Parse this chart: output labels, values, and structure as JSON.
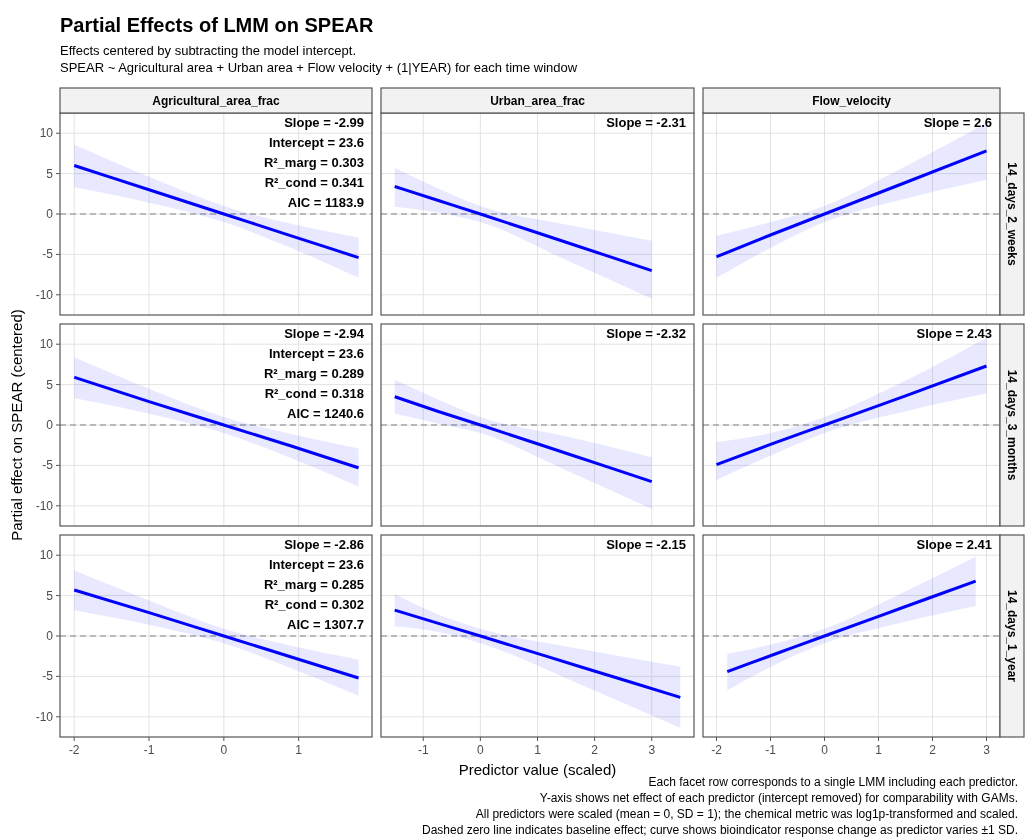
{
  "chart_data": [
    {
      "type": "other",
      "title": "Partial Effects of LMM on SPEAR",
      "subtitle": "Effects centered by subtracting the model intercept.\nSPEAR ~ Agricultural area + Urban area + Flow velocity + (1|YEAR) for each time window",
      "annotations": [
        "Each facet row corresponds to a single LMM including each predictor.",
        "Y-axis shows net effect of each predictor (intercept removed) for comparability with GAMs.",
        "All predictors were scaled (mean = 0, SD = 1); the chemical metric was log1p-transformed and scaled.",
        "Dashed zero line indicates baseline effect; curve shows bioindicator response change as predictor varies ±1 SD."
      ]
    },
    {
      "type": "line",
      "title": "Agricultural_area_frac",
      "xlim": [
        -2.19,
        1.98
      ],
      "xticks": [
        -2,
        -1,
        0,
        1
      ],
      "ylim": [
        -12.5,
        12.5
      ],
      "yticks": [
        -10,
        -5,
        0,
        5,
        10
      ],
      "grid": true,
      "tick_labels": "y",
      "ref_lines": [
        {
          "axis": "y",
          "value": 0,
          "color": "#808080",
          "line_style": "dashed"
        }
      ],
      "annotations": [
        "Slope = -2.99",
        "Intercept = 23.6",
        "R²_marg = 0.303",
        "R²_cond = 0.341",
        "AIC = 1183.9"
      ],
      "series": [
        {
          "color": "#0000ff",
          "x": [
            -2,
            -1,
            0,
            0.9,
            1.8
          ],
          "values": [
            6.0,
            3.0,
            0,
            -2.7,
            -5.4
          ],
          "lower": [
            3.3,
            1.4,
            -1.0,
            -4.2,
            -7.9
          ],
          "upper": [
            8.6,
            4.6,
            1.0,
            -1.2,
            -2.9
          ]
        }
      ]
    },
    {
      "type": "line",
      "title": "Urban_area_frac",
      "xlim": [
        -1.74,
        3.74
      ],
      "xticks": [
        -1,
        0,
        1,
        2,
        3
      ],
      "ylim": [
        -12.5,
        12.5
      ],
      "yticks": [
        -10,
        -5,
        0,
        5,
        10
      ],
      "grid": true,
      "tick_labels": false,
      "ref_lines": [
        {
          "axis": "y",
          "value": 0,
          "color": "#808080",
          "line_style": "dashed"
        }
      ],
      "annotations": [
        "Slope = -2.31"
      ],
      "series": [
        {
          "color": "#0000ff",
          "x": [
            -1.5,
            -0.75,
            0,
            1.5,
            3
          ],
          "values": [
            3.4,
            1.7,
            0,
            -3.5,
            -7.0
          ],
          "lower": [
            0.9,
            0.2,
            -1.0,
            -5.7,
            -10.5
          ],
          "upper": [
            5.7,
            3.2,
            1.0,
            -1.3,
            -3.3
          ]
        }
      ]
    },
    {
      "type": "line",
      "title": "Flow_velocity",
      "y2label": "14_days_2_weeks",
      "xlim": [
        -2.25,
        3.25
      ],
      "xticks": [
        -2,
        -1,
        0,
        1,
        2,
        3
      ],
      "ylim": [
        -12.5,
        12.5
      ],
      "yticks": [
        -10,
        -5,
        0,
        5,
        10
      ],
      "grid": true,
      "tick_labels": false,
      "ref_lines": [
        {
          "axis": "y",
          "value": 0,
          "color": "#808080",
          "line_style": "dashed"
        }
      ],
      "annotations": [
        "Slope = 2.6"
      ],
      "series": [
        {
          "color": "#0000ff",
          "x": [
            -2,
            -1,
            0,
            1.5,
            3
          ],
          "values": [
            -5.3,
            -2.6,
            0,
            3.9,
            7.8
          ],
          "lower": [
            -7.9,
            -4.2,
            -1.0,
            1.9,
            4.2
          ],
          "upper": [
            -2.7,
            -1.0,
            1.0,
            5.9,
            11.3
          ]
        }
      ]
    },
    {
      "type": "line",
      "ylabel": "Partial effect on SPEAR (centered)",
      "xlim": [
        -2.19,
        1.98
      ],
      "xticks": [
        -2,
        -1,
        0,
        1
      ],
      "ylim": [
        -12.5,
        12.5
      ],
      "yticks": [
        -10,
        -5,
        0,
        5,
        10
      ],
      "grid": true,
      "tick_labels": "y",
      "ref_lines": [
        {
          "axis": "y",
          "value": 0,
          "color": "#808080",
          "line_style": "dashed"
        }
      ],
      "annotations": [
        "Slope = -2.94",
        "Intercept = 23.6",
        "R²_marg = 0.289",
        "R²_cond = 0.318",
        "AIC = 1240.6"
      ],
      "series": [
        {
          "color": "#0000ff",
          "x": [
            -2,
            -1,
            0,
            0.9,
            1.8
          ],
          "values": [
            5.9,
            2.9,
            0,
            -2.6,
            -5.3
          ],
          "lower": [
            3.3,
            1.4,
            -1.0,
            -4.1,
            -7.6
          ],
          "upper": [
            8.4,
            4.5,
            1.0,
            -1.1,
            -2.9
          ]
        }
      ]
    },
    {
      "type": "line",
      "xlim": [
        -1.74,
        3.74
      ],
      "xticks": [
        -1,
        0,
        1,
        2,
        3
      ],
      "ylim": [
        -12.5,
        12.5
      ],
      "yticks": [
        -10,
        -5,
        0,
        5,
        10
      ],
      "grid": true,
      "tick_labels": false,
      "ref_lines": [
        {
          "axis": "y",
          "value": 0,
          "color": "#808080",
          "line_style": "dashed"
        }
      ],
      "annotations": [
        "Slope = -2.32"
      ],
      "series": [
        {
          "color": "#0000ff",
          "x": [
            -1.5,
            -0.75,
            0,
            1.5,
            3
          ],
          "values": [
            3.5,
            1.7,
            0,
            -3.5,
            -7.0
          ],
          "lower": [
            1.4,
            0.2,
            -1.0,
            -5.6,
            -10.4
          ],
          "upper": [
            5.6,
            3.2,
            1.0,
            -1.4,
            -4.0
          ]
        }
      ]
    },
    {
      "type": "line",
      "y2label": "14_days_3_months",
      "xlim": [
        -2.25,
        3.25
      ],
      "xticks": [
        -2,
        -1,
        0,
        1,
        2,
        3
      ],
      "ylim": [
        -12.5,
        12.5
      ],
      "yticks": [
        -10,
        -5,
        0,
        5,
        10
      ],
      "grid": true,
      "tick_labels": false,
      "ref_lines": [
        {
          "axis": "y",
          "value": 0,
          "color": "#808080",
          "line_style": "dashed"
        }
      ],
      "annotations": [
        "Slope = 2.43"
      ],
      "series": [
        {
          "color": "#0000ff",
          "x": [
            -2,
            -1,
            0,
            1.5,
            3
          ],
          "values": [
            -4.9,
            -2.4,
            0,
            3.6,
            7.3
          ],
          "lower": [
            -6.8,
            -3.8,
            -1.0,
            1.7,
            3.9
          ],
          "upper": [
            -2.1,
            -1.0,
            1.0,
            5.5,
            10.8
          ]
        }
      ]
    },
    {
      "type": "line",
      "xlim": [
        -2.19,
        1.98
      ],
      "xticks": [
        -2,
        -1,
        0,
        1
      ],
      "ylim": [
        -12.5,
        12.5
      ],
      "yticks": [
        -10,
        -5,
        0,
        5,
        10
      ],
      "grid": true,
      "ref_lines": [
        {
          "axis": "y",
          "value": 0,
          "color": "#808080",
          "line_style": "dashed"
        }
      ],
      "annotations": [
        "Slope = -2.86",
        "Intercept = 23.6",
        "R²_marg = 0.285",
        "R²_cond = 0.302",
        "AIC = 1307.7"
      ],
      "series": [
        {
          "color": "#0000ff",
          "x": [
            -2,
            -1,
            0,
            0.9,
            1.8
          ],
          "values": [
            5.7,
            2.9,
            0,
            -2.6,
            -5.2
          ],
          "lower": [
            3.2,
            1.4,
            -0.9,
            -4.0,
            -7.4
          ],
          "upper": [
            8.1,
            4.4,
            0.9,
            -1.2,
            -2.9
          ]
        }
      ]
    },
    {
      "type": "line",
      "xlabel": "Predictor value (scaled)",
      "xlim": [
        -1.74,
        3.74
      ],
      "xticks": [
        -1,
        0,
        1,
        2,
        3
      ],
      "ylim": [
        -12.5,
        12.5
      ],
      "yticks": [
        -10,
        -5,
        0,
        5,
        10
      ],
      "grid": true,
      "tick_labels": "x",
      "ref_lines": [
        {
          "axis": "y",
          "value": 0,
          "color": "#808080",
          "line_style": "dashed"
        }
      ],
      "annotations": [
        "Slope = -2.15"
      ],
      "series": [
        {
          "color": "#0000ff",
          "x": [
            -1.5,
            -0.75,
            0,
            1.75,
            3.5
          ],
          "values": [
            3.2,
            1.6,
            0,
            -3.8,
            -7.6
          ],
          "lower": [
            1.2,
            0.5,
            -0.9,
            -6.0,
            -11.4
          ],
          "upper": [
            5.2,
            2.7,
            0.9,
            -1.6,
            -3.8
          ]
        }
      ]
    },
    {
      "type": "line",
      "y2label": "14_days_1_year",
      "xlim": [
        -2.25,
        3.25
      ],
      "xticks": [
        -2,
        -1,
        0,
        1,
        2,
        3
      ],
      "ylim": [
        -12.5,
        12.5
      ],
      "yticks": [
        -10,
        -5,
        0,
        5,
        10
      ],
      "grid": true,
      "tick_labels": "x",
      "ref_lines": [
        {
          "axis": "y",
          "value": 0,
          "color": "#808080",
          "line_style": "dashed"
        }
      ],
      "annotations": [
        "Slope = 2.41"
      ],
      "series": [
        {
          "color": "#0000ff",
          "x": [
            -1.8,
            -0.9,
            0,
            1.4,
            2.8
          ],
          "values": [
            -4.4,
            -2.2,
            0,
            3.4,
            6.8
          ],
          "lower": [
            -6.7,
            -3.5,
            -0.9,
            1.6,
            3.7
          ],
          "upper": [
            -2.2,
            -0.9,
            0.9,
            5.2,
            9.8
          ]
        }
      ]
    }
  ]
}
